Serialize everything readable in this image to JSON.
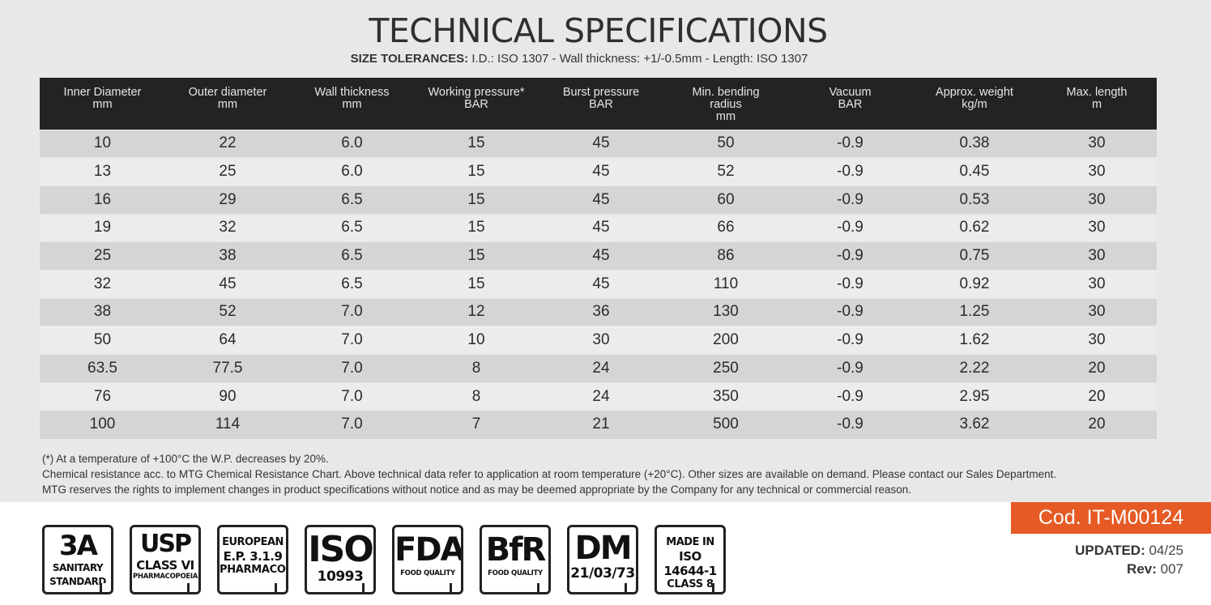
{
  "title": "TECHNICAL SPECIFICATIONS",
  "tolerances": {
    "label": "SIZE TOLERANCES:",
    "text": " I.D.: ISO 1307 - Wall thickness: +1/-0.5mm - Length: ISO 1307"
  },
  "table": {
    "headers": [
      [
        "Inner Diameter",
        "mm"
      ],
      [
        "Outer diameter",
        "mm"
      ],
      [
        "Wall thickness",
        "mm"
      ],
      [
        "Working pressure*",
        "BAR"
      ],
      [
        "Burst pressure",
        "BAR"
      ],
      [
        "Min. bending",
        "radius",
        "mm"
      ],
      [
        "Vacuum",
        "BAR"
      ],
      [
        "Approx. weight",
        "kg/m"
      ],
      [
        "Max. length",
        "m"
      ]
    ],
    "rows": [
      [
        "10",
        "22",
        "6.0",
        "15",
        "45",
        "50",
        "-0.9",
        "0.38",
        "30"
      ],
      [
        "13",
        "25",
        "6.0",
        "15",
        "45",
        "52",
        "-0.9",
        "0.45",
        "30"
      ],
      [
        "16",
        "29",
        "6.5",
        "15",
        "45",
        "60",
        "-0.9",
        "0.53",
        "30"
      ],
      [
        "19",
        "32",
        "6.5",
        "15",
        "45",
        "66",
        "-0.9",
        "0.62",
        "30"
      ],
      [
        "25",
        "38",
        "6.5",
        "15",
        "45",
        "86",
        "-0.9",
        "0.75",
        "30"
      ],
      [
        "32",
        "45",
        "6.5",
        "15",
        "45",
        "110",
        "-0.9",
        "0.92",
        "30"
      ],
      [
        "38",
        "52",
        "7.0",
        "12",
        "36",
        "130",
        "-0.9",
        "1.25",
        "30"
      ],
      [
        "50",
        "64",
        "7.0",
        "10",
        "30",
        "200",
        "-0.9",
        "1.62",
        "30"
      ],
      [
        "63.5",
        "77.5",
        "7.0",
        "8",
        "24",
        "250",
        "-0.9",
        "2.22",
        "20"
      ],
      [
        "76",
        "90",
        "7.0",
        "8",
        "24",
        "350",
        "-0.9",
        "2.95",
        "20"
      ],
      [
        "100",
        "114",
        "7.0",
        "7",
        "21",
        "500",
        "-0.9",
        "3.62",
        "20"
      ]
    ]
  },
  "notes": [
    "(*) At a temperature of +100°C the W.P. decreases by 20%.",
    "Chemical resistance acc. to MTG Chemical Resistance Chart.  Above technical data refer to application at room temperature (+20°C).  Other sizes are available on demand. Please contact our Sales Department.",
    "MTG reserves the rights to implement changes in product specifications without notice and as may be deemed appropriate by the Company for any technical or commercial reason."
  ],
  "badges": [
    {
      "big": "3A",
      "lines": [
        "SANITARY",
        "STANDARD"
      ]
    },
    {
      "big": "USP",
      "mid": "CLASS VI",
      "lines": [
        "PHARMACOPOEIA"
      ]
    },
    {
      "top": "EUROPEAN",
      "mid": "E.P. 3.1.9",
      "lines": [
        "PHARMACOPOEIA"
      ]
    },
    {
      "big": "ISO",
      "mid": "10993",
      "lines": []
    },
    {
      "big": "FDA",
      "lines": [
        "FOOD QUALITY"
      ]
    },
    {
      "big": "BfR",
      "lines": [
        "FOOD QUALITY"
      ]
    },
    {
      "big": "DM",
      "mid": "21/03/73",
      "lines": []
    },
    {
      "top": "MADE IN",
      "mid": "ISO 14644-1",
      "lines": [
        "CLASS 8"
      ]
    }
  ],
  "code": "Cod. IT-M00124",
  "updated": {
    "label": "UPDATED:",
    "value": " 04/25"
  },
  "rev": {
    "label": "Rev:",
    "value": " 007"
  },
  "colors": {
    "accent": "#e55a25",
    "header_bg": "#232323"
  }
}
